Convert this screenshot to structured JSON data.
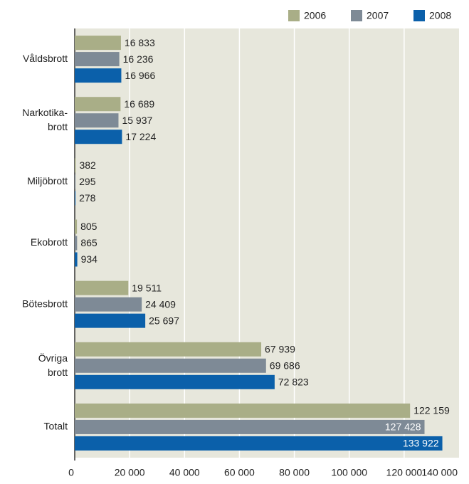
{
  "chart_data": {
    "type": "hbar",
    "categories": [
      "Våldsbrott",
      "Narkotika-brott",
      "Miljöbrott",
      "Ekobrott",
      "Bötesbrott",
      "Övriga brott",
      "Totalt"
    ],
    "series": [
      {
        "name": "2006",
        "color": "#a9ae87",
        "values": [
          16833,
          16689,
          382,
          805,
          19511,
          67939,
          122159
        ],
        "value_labels": [
          "16 833",
          "16 689",
          "382",
          "805",
          "19 511",
          "67 939",
          "122 159"
        ]
      },
      {
        "name": "2007",
        "color": "#7e8a96",
        "values": [
          16236,
          15937,
          295,
          865,
          24409,
          69686,
          127428
        ],
        "value_labels": [
          "16 236",
          "15 937",
          "295",
          "865",
          "24 409",
          "69 686",
          "127 428"
        ]
      },
      {
        "name": "2008",
        "color": "#0b60aa",
        "values": [
          16966,
          17224,
          278,
          934,
          25697,
          72823,
          133922
        ],
        "value_labels": [
          "16 966",
          "17 224",
          "278",
          "934",
          "25 697",
          "72 823",
          "133 922"
        ]
      }
    ],
    "xlim": [
      0,
      140000
    ],
    "xticks": [
      0,
      {
        "value": 20000,
        "label": "20 000"
      },
      {
        "value": 40000,
        "label": "40 000"
      },
      {
        "value": 60000,
        "label": "60 000"
      },
      {
        "value": 80000,
        "label": "80 000"
      },
      {
        "value": 100000,
        "label": "100 000"
      },
      {
        "value": 120000,
        "label": "120 000"
      },
      {
        "value": 140000,
        "label": "140 000"
      }
    ],
    "grid": true,
    "legend": "top-right"
  }
}
